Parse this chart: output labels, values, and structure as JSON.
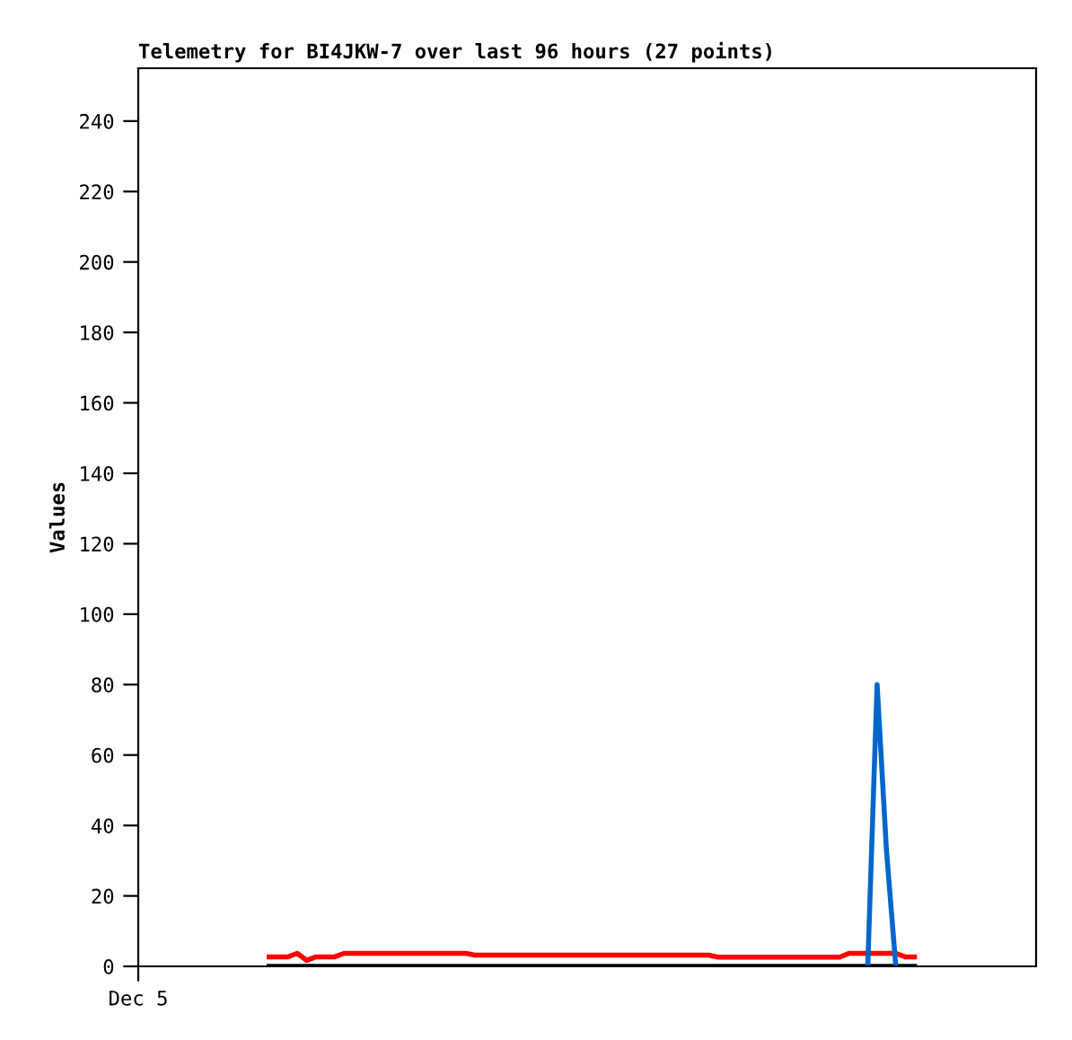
{
  "chart_data": {
    "type": "line",
    "title": "Telemetry for BI4JKW-7 over last 96 hours (27 points)",
    "ylabel": "Values",
    "categories": [
      "Dec 5",
      null,
      null,
      null,
      null,
      null,
      null,
      null,
      null,
      null,
      null,
      null,
      null,
      null,
      null,
      null,
      null,
      null,
      null,
      null,
      null,
      null,
      null,
      null,
      null,
      null,
      null,
      null,
      null,
      null,
      null,
      null,
      null,
      null,
      null,
      null,
      null,
      null,
      null,
      null,
      null,
      null,
      null,
      null,
      null,
      null,
      null,
      null,
      null,
      null,
      null,
      null,
      null,
      null,
      null,
      null,
      null,
      null,
      null,
      null,
      null,
      null,
      null,
      null,
      null,
      null,
      null,
      null,
      null,
      null,
      null,
      null,
      null,
      null,
      null,
      null,
      null,
      null,
      null,
      null,
      null,
      null,
      null,
      null,
      null,
      null,
      null,
      null,
      null,
      null,
      null,
      null,
      null,
      null,
      null,
      null,
      null
    ],
    "ylim": [
      0,
      255
    ],
    "yticks": [
      0,
      20,
      40,
      60,
      80,
      100,
      120,
      140,
      160,
      180,
      200,
      220,
      240
    ],
    "line_style": "solid",
    "series": [
      {
        "color": "#000000",
        "values": [
          null,
          null,
          null,
          null,
          null,
          null,
          null,
          null,
          null,
          null,
          null,
          null,
          null,
          null,
          0,
          0,
          0,
          0,
          0,
          0,
          0,
          0,
          0,
          0,
          0,
          0,
          0,
          0,
          0,
          0,
          0,
          0,
          0,
          0,
          0,
          0,
          0,
          0,
          0,
          0,
          0,
          0,
          0,
          0,
          0,
          0,
          0,
          0,
          0,
          0,
          0,
          0,
          0,
          0,
          0,
          0,
          0,
          0,
          0,
          0,
          0,
          0,
          0,
          0,
          0,
          0,
          0,
          0,
          0,
          0,
          0,
          0,
          0,
          0,
          0,
          0,
          0,
          0,
          0,
          0,
          0,
          0,
          0,
          0,
          null,
          null,
          null,
          null,
          null,
          null,
          null,
          null,
          null,
          null,
          null,
          null,
          null
        ]
      },
      {
        "color": "#ff0000",
        "values": [
          null,
          null,
          null,
          null,
          null,
          null,
          null,
          null,
          null,
          null,
          null,
          null,
          null,
          null,
          2.7,
          2.7,
          2.7,
          3.7,
          1.7,
          2.7,
          2.7,
          2.7,
          3.7,
          3.7,
          3.7,
          3.7,
          3.7,
          3.7,
          3.7,
          3.7,
          3.7,
          3.7,
          3.7,
          3.7,
          3.7,
          3.7,
          3.2,
          3.2,
          3.2,
          3.2,
          3.2,
          3.2,
          3.2,
          3.2,
          3.2,
          3.2,
          3.2,
          3.2,
          3.2,
          3.2,
          3.2,
          3.2,
          3.2,
          3.2,
          3.2,
          3.2,
          3.2,
          3.2,
          3.2,
          3.2,
          3.2,
          3.2,
          2.6,
          2.6,
          2.6,
          2.6,
          2.6,
          2.6,
          2.6,
          2.6,
          2.6,
          2.6,
          2.6,
          2.6,
          2.6,
          2.6,
          3.7,
          3.7,
          3.7,
          3.7,
          3.7,
          3.7,
          2.7,
          2.7,
          null,
          null,
          null,
          null,
          null,
          null,
          null,
          null,
          null,
          null,
          null,
          null,
          null
        ]
      },
      {
        "color": "#0066cc",
        "values": [
          null,
          null,
          null,
          null,
          null,
          null,
          null,
          null,
          null,
          null,
          null,
          null,
          null,
          null,
          null,
          null,
          null,
          null,
          null,
          null,
          null,
          null,
          null,
          null,
          null,
          null,
          null,
          null,
          null,
          null,
          null,
          null,
          null,
          null,
          null,
          null,
          null,
          null,
          null,
          null,
          null,
          null,
          null,
          null,
          null,
          null,
          null,
          null,
          null,
          null,
          null,
          null,
          null,
          null,
          null,
          null,
          null,
          null,
          null,
          null,
          null,
          null,
          null,
          null,
          null,
          null,
          null,
          null,
          null,
          null,
          null,
          null,
          null,
          null,
          null,
          null,
          null,
          null,
          0,
          80,
          33,
          0,
          null,
          null,
          null,
          null,
          null,
          null,
          null,
          null,
          null,
          null,
          null,
          null,
          null,
          null,
          null
        ]
      }
    ]
  }
}
